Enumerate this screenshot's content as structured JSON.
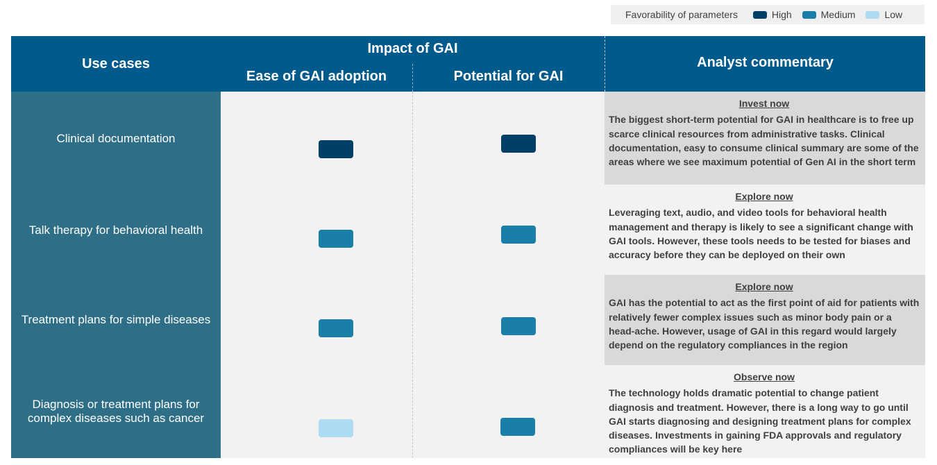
{
  "legend": {
    "title": "Favorability of parameters",
    "items": [
      {
        "label": "High",
        "color": "#003f66"
      },
      {
        "label": "Medium",
        "color": "#1a7ea9"
      },
      {
        "label": "Low",
        "color": "#addcf2"
      }
    ]
  },
  "header": {
    "use_cases": "Use cases",
    "impact": "Impact of GAI",
    "ease": "Ease of GAI adoption",
    "potential": "Potential for GAI",
    "commentary": "Analyst commentary"
  },
  "rows": [
    {
      "use_case": "Clinical documentation",
      "ease": "High",
      "potential": "High",
      "commentary_title": "Invest now",
      "commentary_text": "The biggest short-term potential for GAI in healthcare is to free up scarce clinical resources from administrative tasks. Clinical documentation, easy to consume clinical summary are some of the areas where we see maximum potential of Gen AI in the short term"
    },
    {
      "use_case": "Talk therapy for behavioral health",
      "ease": "Medium",
      "potential": "Medium",
      "commentary_title": "Explore now",
      "commentary_text": "Leveraging text, audio, and video tools for behavioral health management and therapy is likely to see a significant change with GAI tools. However, these tools needs to be tested for biases and accuracy before they can be deployed on their own"
    },
    {
      "use_case": "Treatment plans for simple diseases",
      "ease": "Medium",
      "potential": "Medium",
      "commentary_title": "Explore now",
      "commentary_text": "GAI has the potential to act as the first point of aid for patients with relatively fewer complex issues such as minor body pain or a head-ache. However, usage of GAI in this regard would largely depend on the regulatory compliances in the region"
    },
    {
      "use_case": "Diagnosis or treatment plans for complex diseases such as cancer",
      "ease": "Low",
      "potential": "Medium",
      "commentary_title": "Observe now",
      "commentary_text": "The technology holds dramatic potential to change patient diagnosis and treatment. However, there is a long way to go until GAI starts diagnosing and designing treatment plans for complex diseases. Investments in gaining FDA approvals and regulatory compliances will be key here"
    }
  ],
  "colors": {
    "header_bg": "#005a8c",
    "use_case_bg": "#2e6f87",
    "grid_bg": "#f2f2f2",
    "commentary_bg_dark": "#d9d9d9",
    "commentary_bg_light": "#f2f2f2"
  }
}
